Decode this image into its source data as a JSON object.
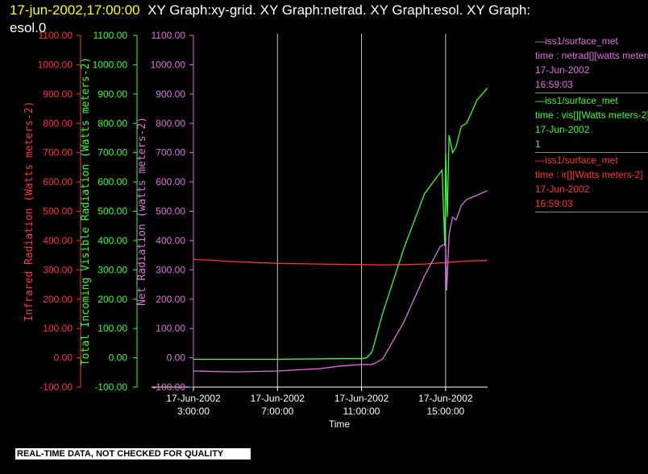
{
  "header": {
    "timestamp": "17-jun-2002,17:00:00",
    "titles": "XY Graph:xy-grid.  XY Graph:netrad.  XY Graph:esol.  XY Graph:",
    "titles_cont": "esol.0"
  },
  "disclaimer": "REAL-TIME DATA, NOT CHECKED FOR QUALITY",
  "legend": [
    {
      "source": "—iss1/surface_met",
      "var": "time : netrad[][watts meters-2]",
      "date": "17-Jun-2002",
      "time": "16:59:03",
      "color": "#e070e0"
    },
    {
      "source": "—iss1/surface_met",
      "var": "time : vis[][Watts meters-2]",
      "date": "17-Jun-2002",
      "time": "1",
      "color": "#33ff33"
    },
    {
      "source": "—iss1/surface_met",
      "var": "time : ir[][Watts meters-2]",
      "date": "17-Jun-2002",
      "time": "16:59:03",
      "color": "#ff3333"
    }
  ],
  "chart_data": {
    "type": "line",
    "xlabel": "Time",
    "x_ticks": [
      "17-Jun-2002\n3:00:00",
      "17-Jun-2002\n7:00:00",
      "17-Jun-2002\n11:00:00",
      "17-Jun-2002\n15:00:00"
    ],
    "x_range": [
      "2002-06-17 03:00",
      "2002-06-17 17:00"
    ],
    "y_ticks": [
      "-100.00",
      "0.00",
      "100.00",
      "200.00",
      "300.00",
      "400.00",
      "500.00",
      "600.00",
      "700.00",
      "800.00",
      "900.00",
      "1000.00",
      "1100.00"
    ],
    "ylim": [
      -100,
      1100
    ],
    "grid": "vertical lines at x ticks",
    "axes": [
      {
        "label": "Infrared Radiation (Watts meters-2)",
        "color": "#ff3333"
      },
      {
        "label": "Total Incoming Visible Radiation (Watts meters-2)",
        "color": "#33ff33"
      },
      {
        "label": "Net Radiation (watts meters-2)",
        "color": "#e070e0"
      }
    ],
    "series": [
      {
        "color": "#ff3333",
        "x": [
          "03:00",
          "05:00",
          "07:00",
          "09:00",
          "11:00",
          "12:00",
          "13:00",
          "14:00",
          "15:00",
          "16:00",
          "16:59"
        ],
        "values": [
          336,
          328,
          322,
          320,
          318,
          317,
          318,
          320,
          325,
          330,
          332
        ]
      },
      {
        "color": "#33ff33",
        "x": [
          "03:00",
          "07:00",
          "10:00",
          "11:00",
          "11:15",
          "11:30",
          "12:00",
          "13:00",
          "14:00",
          "14:50",
          "14:58",
          "15:00",
          "15:05",
          "15:10",
          "15:20",
          "15:30",
          "15:45",
          "16:00",
          "16:30",
          "16:59"
        ],
        "values": [
          -5,
          -5,
          -3,
          -3,
          0,
          20,
          150,
          370,
          560,
          640,
          380,
          700,
          480,
          760,
          700,
          720,
          790,
          800,
          880,
          920
        ]
      },
      {
        "color": "#e070e0",
        "x": [
          "03:00",
          "05:00",
          "07:00",
          "09:00",
          "10:00",
          "11:00",
          "11:30",
          "12:00",
          "13:00",
          "14:00",
          "14:45",
          "15:00",
          "15:03",
          "15:10",
          "15:20",
          "15:30",
          "15:45",
          "16:00",
          "16:30",
          "16:59"
        ],
        "values": [
          -45,
          -48,
          -45,
          -37,
          -28,
          -23,
          -23,
          -5,
          120,
          280,
          380,
          390,
          230,
          420,
          480,
          470,
          520,
          540,
          555,
          570
        ]
      }
    ]
  }
}
